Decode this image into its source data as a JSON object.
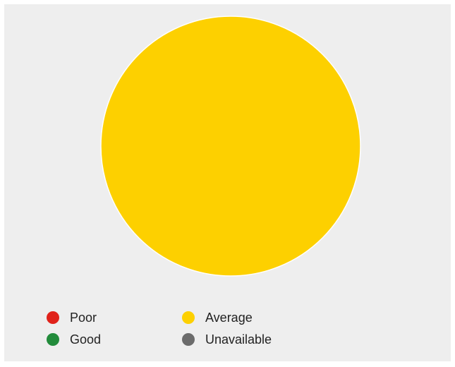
{
  "chart_data": {
    "type": "pie",
    "slices": [
      {
        "label": "Poor",
        "value": 0,
        "color": "#e0221a"
      },
      {
        "label": "Average",
        "value": 100,
        "color": "#fdd000"
      },
      {
        "label": "Good",
        "value": 0,
        "color": "#228b3b"
      },
      {
        "label": "Unavailable",
        "value": 0,
        "color": "#6b6b6b"
      }
    ],
    "legend": "bottom",
    "background": "#eeeeee"
  },
  "legend": {
    "items": [
      {
        "label": "Poor",
        "color": "#e0221a"
      },
      {
        "label": "Average",
        "color": "#fdd000"
      },
      {
        "label": "Good",
        "color": "#228b3b"
      },
      {
        "label": "Unavailable",
        "color": "#6b6b6b"
      }
    ]
  }
}
